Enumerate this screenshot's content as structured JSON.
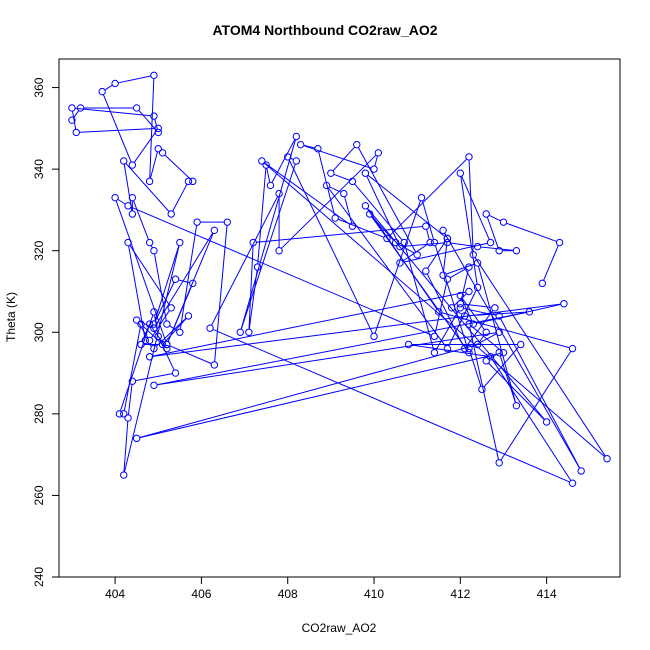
{
  "chart_data": {
    "type": "line",
    "title": "ATOM4 Northbound CO2raw_AO2",
    "xlabel": "CO2raw_AO2",
    "ylabel": "Theta (K)",
    "xlim": [
      402.7,
      415.7
    ],
    "ylim": [
      240,
      367
    ],
    "xticks": [
      404,
      406,
      408,
      410,
      412,
      414
    ],
    "yticks": [
      240,
      260,
      280,
      300,
      320,
      340,
      360
    ],
    "grid": false,
    "legend": "none",
    "series_color": "#0000ff",
    "markers": "open-circle",
    "series": [
      {
        "x": [
          403.0,
          403.2,
          404.5,
          405.0,
          404.9,
          403.0,
          403.1,
          405.0,
          404.4,
          403.7,
          404.0,
          404.9,
          404.8,
          405.0,
          405.1,
          405.8,
          405.7,
          405.3,
          404.2,
          404.4,
          404.4,
          404.8,
          404.9,
          405.2,
          405.5,
          405.9,
          406.6,
          406.3,
          405.2,
          406.3,
          404.9,
          404.5,
          404.8,
          405.3,
          404.3,
          404.7,
          404.9,
          405.7,
          405.1,
          404.6,
          404.8,
          405.2,
          404.6,
          404.2,
          404.1,
          404.9,
          405.0,
          405.4,
          404.4,
          404.3,
          404.2,
          405.5,
          404.9,
          405.4,
          405.8,
          405.2,
          404.0,
          404.3,
          411.4,
          411.7,
          412.2,
          412.0,
          412.8,
          412.1,
          411.2,
          411.7,
          411.6,
          412.4,
          413.3,
          412.9,
          412.6,
          414.0,
          409.8,
          411.5,
          414.6,
          412.9,
          412.2,
          413.0,
          404.5,
          412.4,
          412.6,
          412.0,
          412.3,
          414.4,
          404.8,
          412.2,
          411.8,
          412.1,
          413.6,
          404.9,
          412.9,
          412.2,
          412.5,
          413.4,
          410.8,
          412.7,
          414.6,
          406.2,
          407.8,
          407.8,
          410.1,
          410.0,
          408.3,
          408.7,
          409.1,
          410.3,
          412.2,
          412.3,
          415.4,
          407.4,
          409.5,
          409.3,
          408.9,
          411.7,
          412.4,
          412.0,
          412.7,
          410.6,
          411.3,
          411.2,
          407.2,
          407.1,
          407.3,
          407.5,
          407.6,
          408.2,
          406.9,
          408.2,
          408.0,
          410.0,
          411.1,
          411.4,
          412.2,
          409.9,
          410.5,
          411.0,
          409.6,
          409.0,
          409.5,
          410.7,
          411.4,
          412.0,
          412.9,
          414.8,
          411.6,
          411.7,
          409.8,
          410.6,
          411.7,
          412.4,
          413.3,
          412.9,
          412.6,
          413.0,
          414.3,
          413.9
        ],
        "y": [
          352,
          355,
          355,
          349,
          353,
          355,
          349,
          350,
          341,
          359,
          361,
          363,
          337,
          345,
          344,
          337,
          337,
          329,
          342,
          329,
          333,
          322,
          320,
          302,
          300,
          327,
          327,
          292,
          297,
          325,
          301,
          303,
          298,
          306,
          322,
          298,
          296,
          304,
          297,
          297,
          302,
          296,
          302,
          280,
          280,
          305,
          299,
          290,
          288,
          279,
          265,
          322,
          302,
          313,
          312,
          297,
          333,
          331,
          299,
          313,
          316,
          307,
          306,
          296,
          315,
          323,
          314,
          317,
          282,
          295,
          293,
          278,
          331,
          305,
          296,
          268,
          302,
          295,
          274,
          297,
          300,
          309,
          302,
          307,
          294,
          310,
          306,
          304,
          305,
          287,
          300,
          296,
          286,
          297,
          297,
          294,
          263,
          301,
          334,
          320,
          344,
          340,
          346,
          345,
          328,
          323,
          343,
          319,
          269,
          342,
          326,
          334,
          336,
          296,
          311,
          339,
          322,
          317,
          322,
          326,
          322,
          300,
          316,
          341,
          336,
          348,
          300,
          342,
          343,
          299,
          333,
          322,
          295,
          329,
          322,
          319,
          346,
          339,
          337,
          322,
          295,
          306,
          304,
          266,
          325,
          323,
          339,
          321,
          322,
          321,
          320,
          320,
          329,
          327,
          322,
          312
        ]
      }
    ]
  }
}
